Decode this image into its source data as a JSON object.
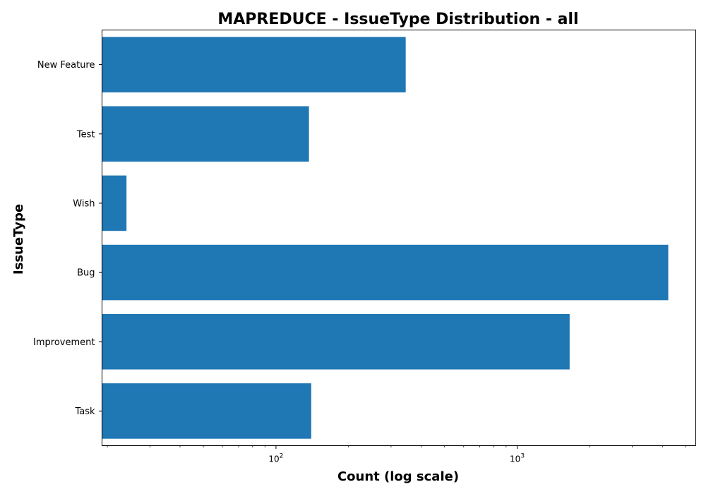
{
  "chart_data": {
    "type": "bar",
    "orientation": "horizontal",
    "title": "MAPREDUCE - IssueType Distribution - all",
    "xlabel": "Count (log scale)",
    "ylabel": "IssueType",
    "xscale": "log",
    "xlim": [
      19,
      5500
    ],
    "x_ticks": [
      100,
      1000
    ],
    "x_tick_labels": [
      {
        "base": "10",
        "exp": "2"
      },
      {
        "base": "10",
        "exp": "3"
      }
    ],
    "categories": [
      "New Feature",
      "Test",
      "Wish",
      "Bug",
      "Improvement",
      "Task"
    ],
    "values": [
      345,
      137,
      24,
      4230,
      1650,
      140
    ],
    "bar_color": "#1f77b4",
    "grid": false,
    "legend": "none"
  }
}
